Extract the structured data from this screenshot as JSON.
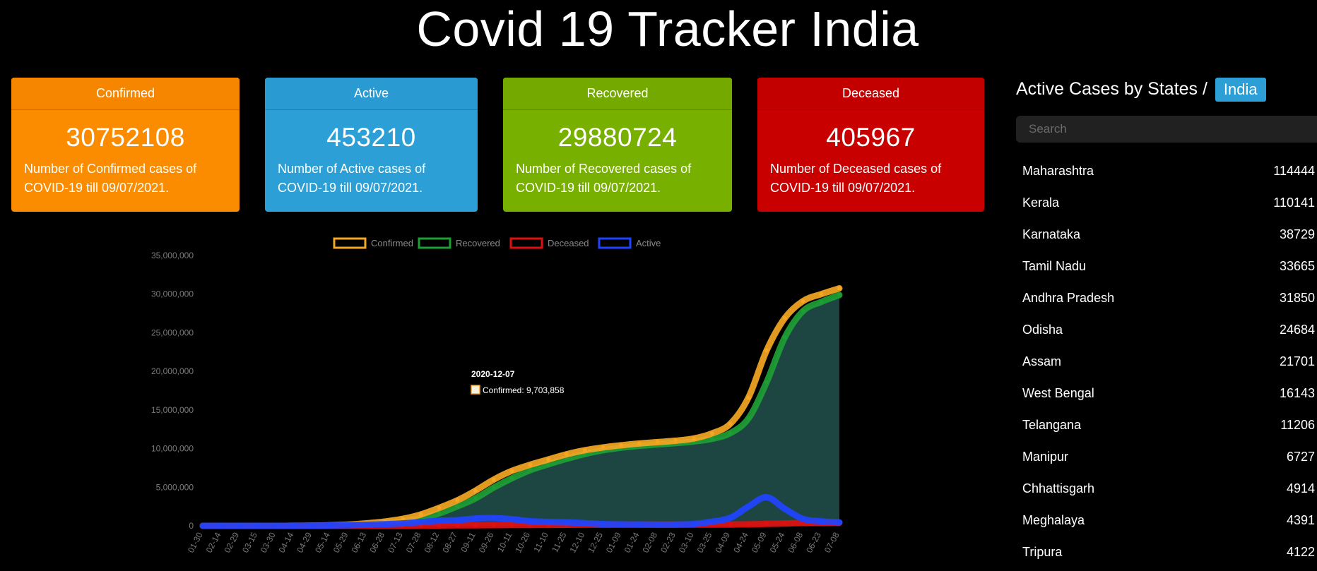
{
  "page": {
    "title": "Covid 19 Tracker India"
  },
  "cards": [
    {
      "id": "confirmed",
      "label": "Confirmed",
      "value": "30752108",
      "text": "Number of Confirmed cases of COVID-19 till 09/07/2021."
    },
    {
      "id": "active",
      "label": "Active",
      "value": "453210",
      "text": "Number of Active cases of COVID-19 till 09/07/2021."
    },
    {
      "id": "recovered",
      "label": "Recovered",
      "value": "29880724",
      "text": "Number of Recovered cases of COVID-19 till 09/07/2021."
    },
    {
      "id": "deceased",
      "label": "Deceased",
      "value": "405967",
      "text": "Number of Deceased cases of COVID-19 till 09/07/2021."
    }
  ],
  "sidebar": {
    "title": "Active Cases by States /",
    "badge": "India",
    "search_placeholder": "Search",
    "states": [
      {
        "name": "Maharashtra",
        "count": "114444"
      },
      {
        "name": "Kerala",
        "count": "110141"
      },
      {
        "name": "Karnataka",
        "count": "38729"
      },
      {
        "name": "Tamil Nadu",
        "count": "33665"
      },
      {
        "name": "Andhra Pradesh",
        "count": "31850"
      },
      {
        "name": "Odisha",
        "count": "24684"
      },
      {
        "name": "Assam",
        "count": "21701"
      },
      {
        "name": "West Bengal",
        "count": "16143"
      },
      {
        "name": "Telangana",
        "count": "11206"
      },
      {
        "name": "Manipur",
        "count": "6727"
      },
      {
        "name": "Chhattisgarh",
        "count": "4914"
      },
      {
        "name": "Meghalaya",
        "count": "4391"
      },
      {
        "name": "Tripura",
        "count": "4122"
      }
    ]
  },
  "chart_data": {
    "type": "line",
    "legend": [
      "Confirmed",
      "Recovered",
      "Deceased",
      "Active"
    ],
    "legend_placement": "top",
    "colors": {
      "Confirmed": "#f5a623",
      "Recovered": "#1e9e35",
      "Deceased": "#e01010",
      "Active": "#1f44ff",
      "fill": "#1f4a46"
    },
    "ylim": [
      0,
      35000000
    ],
    "yticks": [
      "0",
      "5,000,000",
      "10,000,000",
      "15,000,000",
      "20,000,000",
      "25,000,000",
      "30,000,000",
      "35,000,000"
    ],
    "ytick_values": [
      0,
      5000000,
      10000000,
      15000000,
      20000000,
      25000000,
      30000000,
      35000000
    ],
    "xticks": [
      "2020-01-30",
      "2020-02-14",
      "2020-02-29",
      "2020-03-15",
      "2020-03-30",
      "2020-04-14",
      "2020-04-29",
      "2020-05-14",
      "2020-05-29",
      "2020-06-13",
      "2020-06-28",
      "2020-07-13",
      "2020-07-28",
      "2020-08-12",
      "2020-08-27",
      "2020-09-11",
      "2020-09-26",
      "2020-10-11",
      "2020-10-26",
      "2020-11-10",
      "2020-11-25",
      "2020-12-10",
      "2020-12-25",
      "2021-01-09",
      "2021-01-24",
      "2021-02-08",
      "2021-02-23",
      "2021-03-10",
      "2021-03-25",
      "2021-04-09",
      "2021-04-24",
      "2021-05-09",
      "2021-05-24",
      "2021-06-08",
      "2021-06-23",
      "2021-07-08"
    ],
    "xtick_labels": [
      "01-30",
      "02-14",
      "02-29",
      "03-15",
      "03-30",
      "04-14",
      "04-29",
      "05-14",
      "05-29",
      "06-13",
      "06-28",
      "07-13",
      "07-28",
      "08-12",
      "08-27",
      "09-11",
      "09-26",
      "10-11",
      "10-26",
      "11-10",
      "11-25",
      "12-10",
      "12-25",
      "01-09",
      "01-24",
      "02-08",
      "02-23",
      "03-10",
      "03-25",
      "04-09",
      "04-24",
      "05-09",
      "05-24",
      "06-08",
      "06-23",
      "07-08"
    ],
    "series": [
      {
        "name": "Confirmed",
        "values": [
          0,
          0,
          0,
          2000,
          1200,
          11000,
          33000,
          78000,
          166000,
          320000,
          550000,
          907000,
          1480000,
          2330000,
          3310000,
          4560000,
          5990000,
          7120000,
          7910000,
          8590000,
          9270000,
          9790000,
          10150000,
          10430000,
          10660000,
          10840000,
          11020000,
          11310000,
          11970000,
          13200000,
          16600000,
          22700000,
          26900000,
          29100000,
          30000000,
          30750000
        ]
      },
      {
        "name": "Recovered",
        "values": [
          0,
          0,
          0,
          0,
          100,
          1500,
          10000,
          30000,
          80000,
          170000,
          325000,
          570000,
          950000,
          1620000,
          2520000,
          3560000,
          4960000,
          6160000,
          7200000,
          7970000,
          8670000,
          9300000,
          9780000,
          10120000,
          10350000,
          10540000,
          10710000,
          10920000,
          11270000,
          12000000,
          13900000,
          18600000,
          24400000,
          27800000,
          29000000,
          29880000
        ]
      },
      {
        "name": "Deceased",
        "values": [
          0,
          0,
          0,
          0,
          0,
          400,
          1100,
          2600,
          4900,
          9500,
          16000,
          24000,
          34000,
          46000,
          61000,
          77000,
          94000,
          109000,
          119000,
          128000,
          136000,
          142000,
          146000,
          151000,
          153000,
          155000,
          157000,
          158000,
          161000,
          169000,
          193000,
          246000,
          309000,
          367000,
          392000,
          405000
        ]
      },
      {
        "name": "Active",
        "values": [
          0,
          0,
          0,
          2000,
          1100,
          9000,
          22000,
          45000,
          82000,
          140000,
          210000,
          314000,
          494000,
          660000,
          730000,
          940000,
          1000000,
          860000,
          600000,
          500000,
          460000,
          350000,
          230000,
          180000,
          170000,
          150000,
          160000,
          230000,
          540000,
          1030000,
          2500000,
          3700000,
          2200000,
          900000,
          580000,
          450000
        ]
      }
    ],
    "tooltip": {
      "title": "2020-12-07",
      "series": "Confirmed",
      "label": "Confirmed: 9,703,858"
    }
  }
}
